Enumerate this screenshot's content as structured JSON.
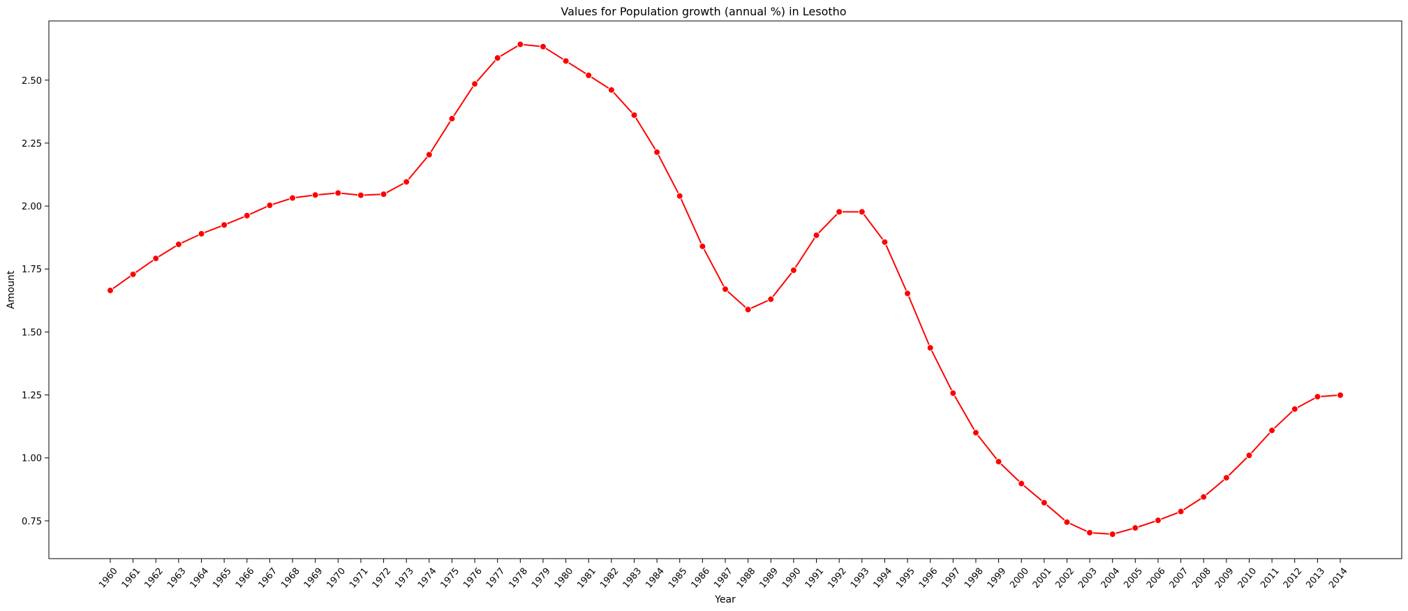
{
  "chart_data": {
    "type": "line",
    "title": "Values for Population growth (annual %) in Lesotho",
    "xlabel": "Year",
    "ylabel": "Amount",
    "categories": [
      "1960",
      "1961",
      "1962",
      "1963",
      "1964",
      "1965",
      "1966",
      "1967",
      "1968",
      "1969",
      "1970",
      "1971",
      "1972",
      "1973",
      "1974",
      "1975",
      "1976",
      "1977",
      "1978",
      "1979",
      "1980",
      "1981",
      "1982",
      "1983",
      "1984",
      "1985",
      "1986",
      "1987",
      "1988",
      "1989",
      "1990",
      "1991",
      "1992",
      "1993",
      "1994",
      "1995",
      "1996",
      "1997",
      "1998",
      "1999",
      "2000",
      "2001",
      "2002",
      "2003",
      "2004",
      "2005",
      "2006",
      "2007",
      "2008",
      "2009",
      "2010",
      "2011",
      "2012",
      "2013",
      "2014"
    ],
    "values": [
      1.665,
      1.729,
      1.792,
      1.848,
      1.89,
      1.925,
      1.962,
      2.003,
      2.032,
      2.044,
      2.052,
      2.043,
      2.047,
      2.096,
      2.204,
      2.347,
      2.485,
      2.588,
      2.642,
      2.633,
      2.576,
      2.519,
      2.461,
      2.361,
      2.214,
      2.04,
      1.84,
      1.67,
      1.589,
      1.63,
      1.745,
      1.884,
      1.977,
      1.977,
      1.857,
      1.653,
      1.437,
      1.257,
      1.1,
      0.985,
      0.898,
      0.822,
      0.745,
      0.703,
      0.697,
      0.722,
      0.752,
      0.787,
      0.845,
      0.921,
      1.01,
      1.109,
      1.194,
      1.243,
      1.249
    ],
    "yticks": [
      "0.75",
      "1.00",
      "1.25",
      "1.50",
      "1.75",
      "2.00",
      "2.25",
      "2.50"
    ],
    "ylim": [
      0.6,
      2.735
    ],
    "color": "#ff0000",
    "grid": false
  }
}
